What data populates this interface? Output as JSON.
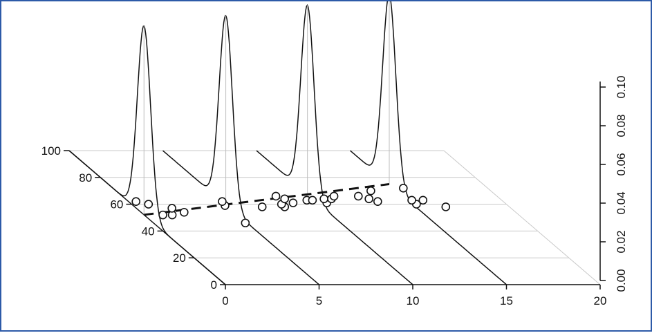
{
  "chart_data": {
    "type": "scatter",
    "title": "",
    "xlabel": "",
    "ylabel": "",
    "zlabel": "",
    "x_ticks": [
      "0",
      "5",
      "10",
      "15",
      "20"
    ],
    "y_ticks": [
      "0",
      "20",
      "40",
      "60",
      "80",
      "100"
    ],
    "z_ticks": [
      "0.00",
      "0.02",
      "0.04",
      "0.06",
      "0.08",
      "0.10"
    ],
    "xlim": [
      0,
      20
    ],
    "ylim": [
      0,
      100
    ],
    "zlim": [
      0,
      0.1
    ],
    "grid": true,
    "points": [
      {
        "x": 0.4,
        "y": 62
      },
      {
        "x": 0.9,
        "y": 60
      },
      {
        "x": 1.0,
        "y": 52
      },
      {
        "x": 1.5,
        "y": 52
      },
      {
        "x": 1.9,
        "y": 57
      },
      {
        "x": 2.3,
        "y": 54
      },
      {
        "x": 4.9,
        "y": 59
      },
      {
        "x": 5.0,
        "y": 62
      },
      {
        "x": 4.9,
        "y": 46
      },
      {
        "x": 6.8,
        "y": 58
      },
      {
        "x": 8.0,
        "y": 58
      },
      {
        "x": 8.0,
        "y": 60
      },
      {
        "x": 8.2,
        "y": 66
      },
      {
        "x": 8.5,
        "y": 64
      },
      {
        "x": 8.7,
        "y": 61
      },
      {
        "x": 9.6,
        "y": 63
      },
      {
        "x": 9.9,
        "y": 63
      },
      {
        "x": 10.5,
        "y": 61
      },
      {
        "x": 10.6,
        "y": 64
      },
      {
        "x": 11.0,
        "y": 64
      },
      {
        "x": 11.3,
        "y": 66
      },
      {
        "x": 12.6,
        "y": 66
      },
      {
        "x": 13.0,
        "y": 64
      },
      {
        "x": 13.3,
        "y": 62
      },
      {
        "x": 13.6,
        "y": 70
      },
      {
        "x": 15.2,
        "y": 60
      },
      {
        "x": 15.2,
        "y": 63
      },
      {
        "x": 15.8,
        "y": 63
      },
      {
        "x": 15.5,
        "y": 72
      },
      {
        "x": 16.6,
        "y": 58
      }
    ],
    "regression_line": {
      "style": "dashed",
      "x": [
        0,
        15
      ],
      "y": [
        52.1,
        75
      ]
    },
    "densities": [
      {
        "x": 0,
        "mean": 52.1,
        "peak": 0.095
      },
      {
        "x": 5,
        "mean": 59.7,
        "peak": 0.095
      },
      {
        "x": 10,
        "mean": 67.4,
        "peak": 0.095
      },
      {
        "x": 15,
        "mean": 75.0,
        "peak": 0.095
      }
    ]
  }
}
